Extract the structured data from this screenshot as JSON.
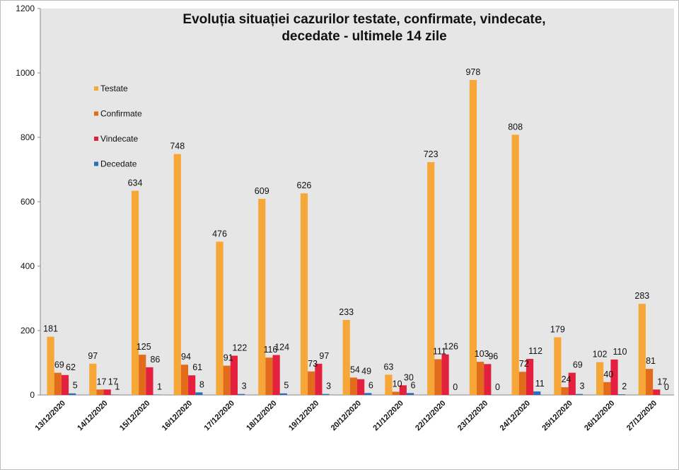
{
  "chart_data": {
    "type": "bar",
    "title_lines": [
      "Evoluția situației cazurilor testate, confirmate, vindecate,",
      "decedate -  ultimele 14 zile"
    ],
    "categories": [
      "13/12/2020",
      "14/12/2020",
      "15/12/2020",
      "16/12/2020",
      "17/12/2020",
      "18/12/2020",
      "19/12/2020",
      "20/12/2020",
      "21/12/2020",
      "22/12/2020",
      "23/12/2020",
      "24/12/2020",
      "25/12/2020",
      "26/12/2020",
      "27/12/2020"
    ],
    "series": [
      {
        "name": "Testate",
        "color": "#F7A738",
        "values": [
          181,
          97,
          634,
          748,
          476,
          609,
          626,
          233,
          63,
          723,
          978,
          808,
          179,
          102,
          283
        ]
      },
      {
        "name": "Confirmate",
        "color": "#E26B1C",
        "values": [
          69,
          17,
          125,
          94,
          91,
          116,
          73,
          54,
          10,
          111,
          103,
          72,
          24,
          40,
          81
        ]
      },
      {
        "name": "Vindecate",
        "color": "#E3213F",
        "values": [
          62,
          17,
          86,
          61,
          122,
          124,
          97,
          49,
          30,
          126,
          96,
          112,
          69,
          110,
          17
        ]
      },
      {
        "name": "Decedate",
        "color": "#2C6FB7",
        "values": [
          5,
          1,
          1,
          8,
          3,
          5,
          3,
          6,
          6,
          0,
          0,
          11,
          3,
          2,
          0
        ]
      }
    ],
    "y_ticks": [
      "0",
      "200",
      "400",
      "600",
      "800",
      "1000",
      "1200"
    ],
    "ylim": [
      0,
      1200
    ],
    "grid": false,
    "legend_position": "top-left",
    "plot_background": "#E6E6E6"
  }
}
